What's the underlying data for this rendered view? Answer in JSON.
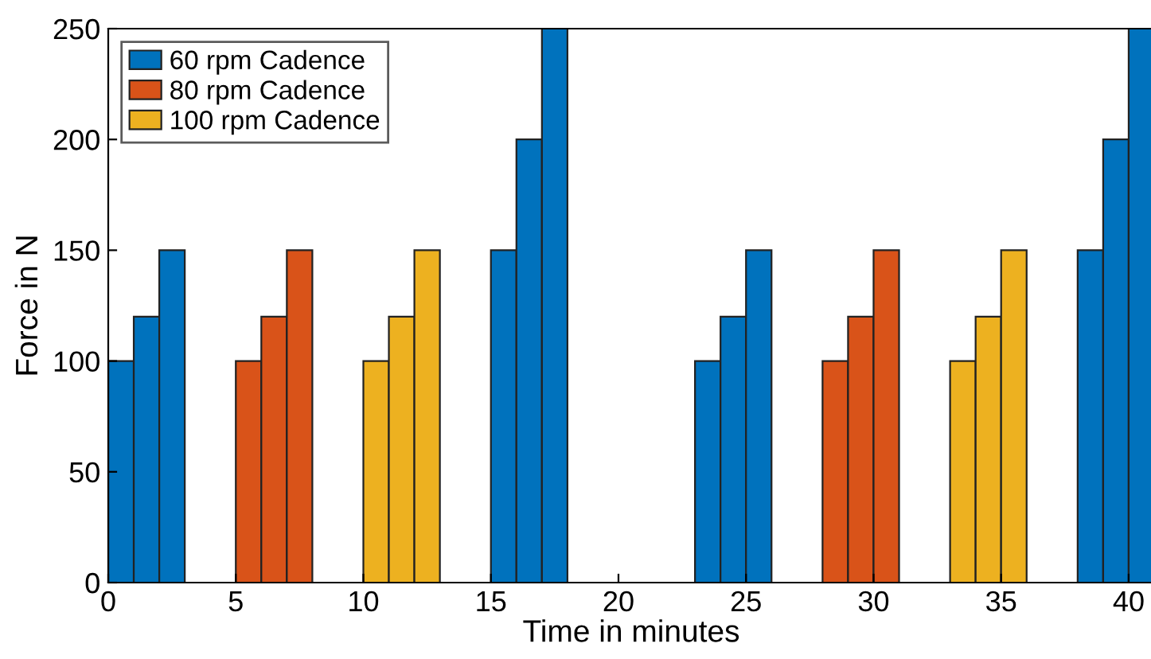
{
  "chart_data": {
    "type": "bar",
    "xlabel": "Time in minutes",
    "ylabel": "Force in N",
    "series": [
      {
        "name": "60 rpm Cadence",
        "color": "#0072bd",
        "x": [
          0.5,
          1.5,
          2.5,
          15.5,
          16.5,
          17.5,
          23.5,
          24.5,
          25.5,
          38.5,
          39.5,
          40.5
        ],
        "values": [
          100,
          120,
          150,
          150,
          200,
          250,
          100,
          120,
          150,
          150,
          200,
          250
        ]
      },
      {
        "name": "80 rpm Cadence",
        "color": "#d95319",
        "x": [
          5.5,
          6.5,
          7.5,
          28.5,
          29.5,
          30.5
        ],
        "values": [
          100,
          120,
          150,
          100,
          120,
          150
        ]
      },
      {
        "name": "100 rpm Cadence",
        "color": "#edb120",
        "x": [
          10.5,
          11.5,
          12.5,
          33.5,
          34.5,
          35.5
        ],
        "values": [
          100,
          120,
          150,
          100,
          120,
          150
        ]
      }
    ],
    "xlim": [
      0,
      41
    ],
    "xticks": [
      0,
      5,
      10,
      15,
      20,
      25,
      30,
      35,
      40
    ],
    "ylim": [
      0,
      250
    ],
    "yticks": [
      0,
      50,
      100,
      150,
      200,
      250
    ],
    "grid": false,
    "legend": "top left"
  }
}
